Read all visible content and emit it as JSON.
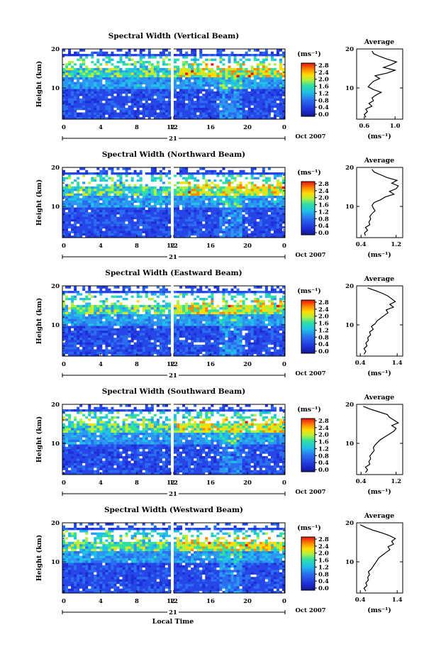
{
  "figure": {
    "panels": [
      {
        "title": "Spectral Width (Vertical Beam)",
        "avg_x_ticks": [
          "0.6",
          "1.0"
        ],
        "avg_x_range": [
          0.5,
          1.1
        ],
        "avg_values": [
          0.62,
          0.6,
          0.64,
          0.62,
          0.7,
          0.66,
          0.72,
          0.7,
          0.75,
          0.82,
          0.72,
          0.65,
          0.68,
          0.72,
          0.8,
          0.74,
          0.9,
          1.0,
          0.85,
          0.95,
          1.02,
          0.9,
          0.8,
          0.72,
          0.7
        ]
      },
      {
        "title": "Spectral Width (Northward Beam)",
        "avg_x_ticks": [
          "0.4",
          "1.2"
        ],
        "avg_x_range": [
          0.3,
          1.35
        ],
        "avg_values": [
          0.5,
          0.48,
          0.55,
          0.5,
          0.6,
          0.58,
          0.62,
          0.6,
          0.65,
          0.72,
          0.68,
          0.65,
          0.7,
          0.85,
          0.95,
          1.15,
          1.05,
          1.2,
          1.25,
          1.1,
          1.22,
          1.0,
          0.85,
          0.7,
          0.65
        ]
      },
      {
        "title": "Spectral Width (Eastward Beam)",
        "avg_x_ticks": [
          "0.4",
          "1.4"
        ],
        "avg_x_range": [
          0.3,
          1.55
        ],
        "avg_values": [
          0.5,
          0.55,
          0.5,
          0.58,
          0.55,
          0.62,
          0.6,
          0.68,
          0.65,
          0.75,
          0.7,
          0.8,
          0.85,
          0.95,
          1.05,
          1.15,
          1.1,
          1.3,
          1.2,
          1.35,
          1.25,
          1.15,
          1.0,
          0.8,
          0.6
        ]
      },
      {
        "title": "Spectral Width (Southward Beam)",
        "avg_x_ticks": [
          "0.4",
          "1.2"
        ],
        "avg_x_range": [
          0.3,
          1.35
        ],
        "avg_values": [
          0.5,
          0.55,
          0.5,
          0.6,
          0.58,
          0.62,
          0.6,
          0.65,
          0.7,
          0.68,
          0.72,
          0.78,
          0.85,
          0.95,
          1.05,
          1.15,
          1.2,
          1.1,
          1.25,
          1.15,
          1.05,
          1.0,
          0.8,
          0.6,
          0.45
        ]
      },
      {
        "title": "Spectral Width (Westward Beam)",
        "avg_x_ticks": [
          "0.4",
          "1.4"
        ],
        "avg_x_range": [
          0.3,
          1.55
        ],
        "avg_values": [
          0.55,
          0.5,
          0.58,
          0.55,
          0.62,
          0.6,
          0.65,
          0.62,
          0.7,
          0.75,
          0.8,
          0.85,
          0.9,
          1.0,
          1.1,
          1.2,
          1.15,
          1.3,
          1.25,
          1.35,
          1.2,
          1.0,
          0.75,
          0.55,
          0.4
        ]
      }
    ],
    "time_ticks": [
      "0",
      "4",
      "8",
      "12",
      "12",
      "16",
      "20",
      "0"
    ],
    "day_label": "21",
    "date_label": "Oct 2007",
    "y_label": "Height (km)",
    "y_ticks": [
      "20",
      "10"
    ],
    "cb_unit": "(ms⁻¹)",
    "cb_ticks": [
      "2.8",
      "2.4",
      "2.0",
      "1.6",
      "1.2",
      "0.8",
      "0.4",
      "0.0"
    ],
    "avg_title": "Average",
    "avg_y_ticks": [
      "20",
      "10"
    ],
    "avg_unit": "(ms⁻¹)",
    "x_label": "Local Time",
    "colors": {
      "low": "#1f2fd8",
      "mid": "#20c0e8",
      "high": "#ffdd00",
      "max": "#e81010"
    }
  },
  "chart_data": [
    {
      "type": "heatmap",
      "title": "Spectral Width (Vertical Beam)",
      "xlabel": "",
      "ylabel": "Height (km)",
      "ylim": [
        2,
        20
      ],
      "colorbar": {
        "unit": "(ms⁻¹)",
        "range": [
          0.0,
          3.0
        ]
      }
    },
    {
      "type": "line",
      "title": "Average",
      "xlabel": "(ms⁻¹)",
      "ylabel": "",
      "ylim": [
        2,
        20
      ],
      "xlim": [
        0.5,
        1.1
      ]
    },
    {
      "type": "heatmap",
      "title": "Spectral Width (Northward Beam)",
      "xlabel": "",
      "ylabel": "Height (km)",
      "ylim": [
        2,
        20
      ],
      "colorbar": {
        "unit": "(ms⁻¹)",
        "range": [
          0.0,
          3.0
        ]
      }
    },
    {
      "type": "line",
      "title": "Average",
      "xlabel": "(ms⁻¹)",
      "ylabel": "",
      "ylim": [
        2,
        20
      ],
      "xlim": [
        0.3,
        1.35
      ]
    },
    {
      "type": "heatmap",
      "title": "Spectral Width (Eastward Beam)",
      "xlabel": "",
      "ylabel": "Height (km)",
      "ylim": [
        2,
        20
      ],
      "colorbar": {
        "unit": "(ms⁻¹)",
        "range": [
          0.0,
          3.0
        ]
      }
    },
    {
      "type": "line",
      "title": "Average",
      "xlabel": "(ms⁻¹)",
      "ylabel": "",
      "ylim": [
        2,
        20
      ],
      "xlim": [
        0.3,
        1.55
      ]
    },
    {
      "type": "heatmap",
      "title": "Spectral Width (Southward Beam)",
      "xlabel": "",
      "ylabel": "Height (km)",
      "ylim": [
        2,
        20
      ],
      "colorbar": {
        "unit": "(ms⁻¹)",
        "range": [
          0.0,
          3.0
        ]
      }
    },
    {
      "type": "line",
      "title": "Average",
      "xlabel": "(ms⁻¹)",
      "ylabel": "",
      "ylim": [
        2,
        20
      ],
      "xlim": [
        0.3,
        1.35
      ]
    },
    {
      "type": "heatmap",
      "title": "Spectral Width (Westward Beam)",
      "xlabel": "Local Time",
      "ylabel": "Height (km)",
      "ylim": [
        2,
        20
      ],
      "colorbar": {
        "unit": "(ms⁻¹)",
        "range": [
          0.0,
          3.0
        ]
      }
    },
    {
      "type": "line",
      "title": "Average",
      "xlabel": "(ms⁻¹)",
      "ylabel": "",
      "ylim": [
        2,
        20
      ],
      "xlim": [
        0.3,
        1.55
      ]
    }
  ]
}
